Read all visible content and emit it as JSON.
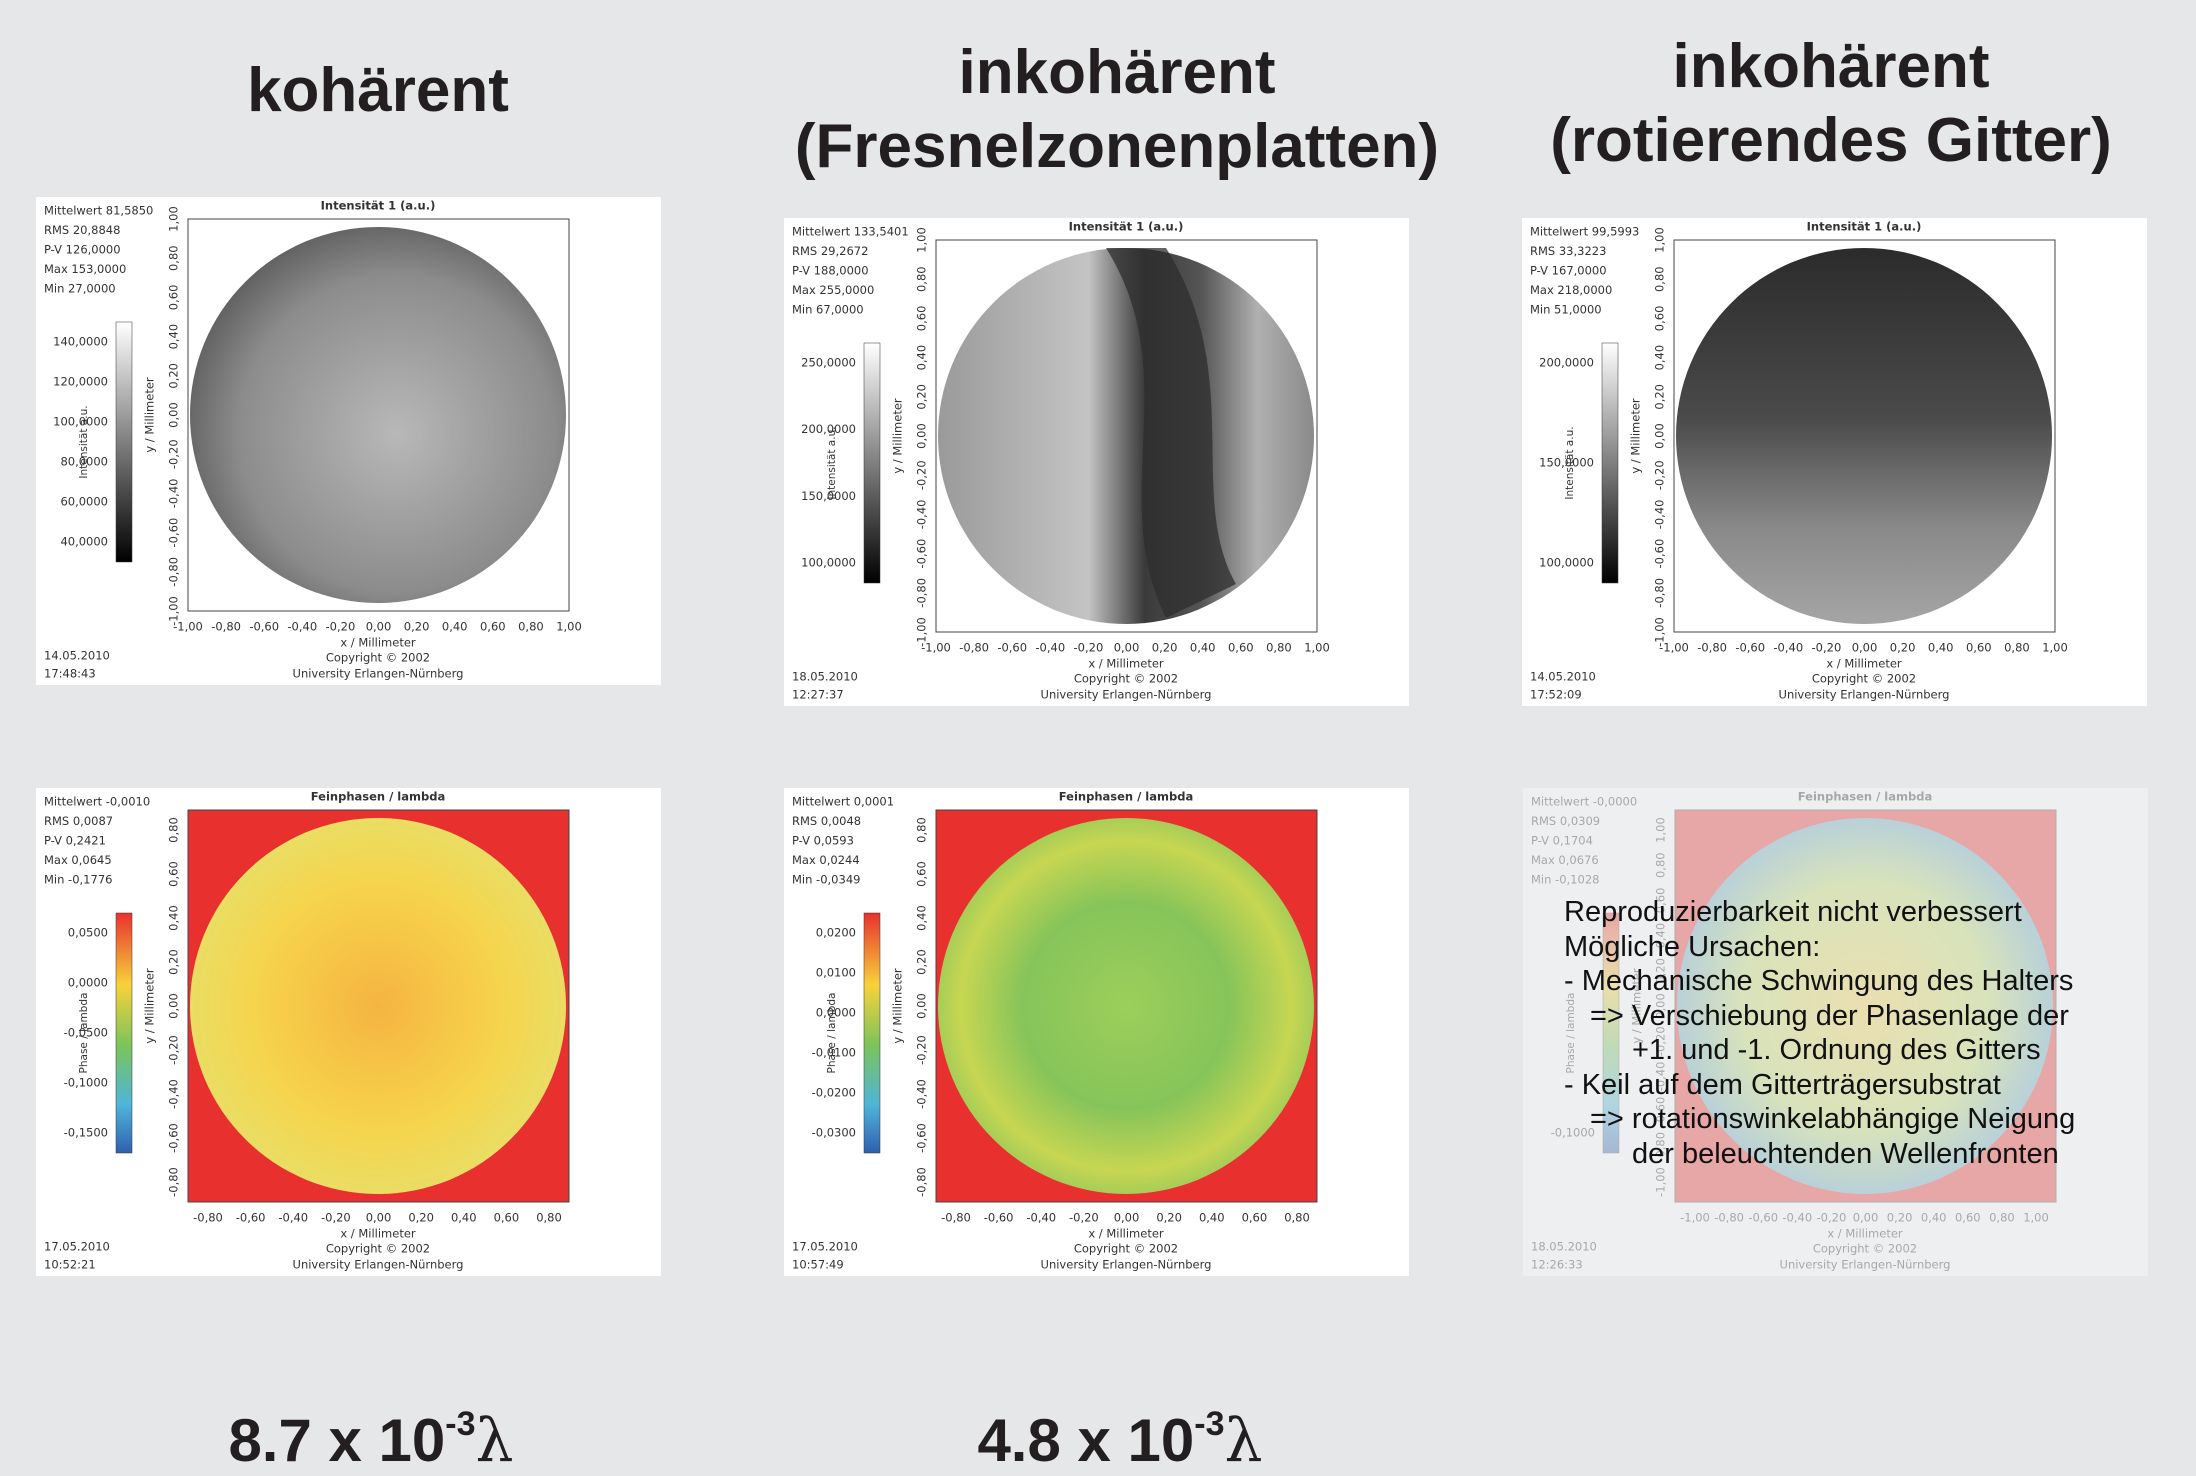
{
  "headings": [
    {
      "lines": [
        "kohärent"
      ]
    },
    {
      "lines": [
        "inkohärent",
        "(Fresnelzonenplatten)"
      ]
    },
    {
      "lines": [
        "inkohärent",
        "(rotierendes Gitter)"
      ]
    }
  ],
  "panels": [
    {
      "title": "Intensität 1 (a.u.)",
      "stats": [
        "Mittelwert 81,5850",
        "RMS 20,8848",
        "P-V 126,0000",
        "Max 153,0000",
        "Min 27,0000"
      ],
      "colorbar_label": "Intensität a.u.",
      "colorbar_ticks": [
        "140,0000",
        "120,0000",
        "100,0000",
        "80,0000",
        "60,0000",
        "40,0000"
      ],
      "y_label": "y / Millimeter",
      "y_ticks": [
        "1,00",
        "0,80",
        "0,60",
        "0,40",
        "0,20",
        "0,00",
        "-0,20",
        "-0,40",
        "-0,60",
        "-0,80",
        "-1,00"
      ],
      "x_label": "x / Millimeter",
      "x_ticks": [
        "-1,00",
        "-0,80",
        "-0,60",
        "-0,40",
        "-0,20",
        "0,00",
        "0,20",
        "0,40",
        "0,60",
        "0,80",
        "1,00"
      ],
      "date": "14.05.2010",
      "time": "17:48:43",
      "copyright": "Copyright © 2002",
      "university": "University Erlangen-Nürnberg"
    },
    {
      "title": "Intensität 1 (a.u.)",
      "stats": [
        "Mittelwert 133,5401",
        "RMS 29,2672",
        "P-V 188,0000",
        "Max 255,0000",
        "Min 67,0000"
      ],
      "colorbar_label": "Intensität a.u.",
      "colorbar_ticks": [
        "250,0000",
        "200,0000",
        "150,0000",
        "100,0000"
      ],
      "y_label": "y / Millimeter",
      "y_ticks": [
        "1,00",
        "0,80",
        "0,60",
        "0,40",
        "0,20",
        "0,00",
        "-0,20",
        "-0,40",
        "-0,60",
        "-0,80",
        "-1,00"
      ],
      "x_label": "x / Millimeter",
      "x_ticks": [
        "-1,00",
        "-0,80",
        "-0,60",
        "-0,40",
        "-0,20",
        "0,00",
        "0,20",
        "0,40",
        "0,60",
        "0,80",
        "1,00"
      ],
      "date": "18.05.2010",
      "time": "12:27:37",
      "copyright": "Copyright © 2002",
      "university": "University Erlangen-Nürnberg"
    },
    {
      "title": "Intensität 1 (a.u.)",
      "stats": [
        "Mittelwert 99,5993",
        "RMS 33,3223",
        "P-V 167,0000",
        "Max 218,0000",
        "Min 51,0000"
      ],
      "colorbar_label": "Intensität a.u.",
      "colorbar_ticks": [
        "200,0000",
        "150,0000",
        "100,0000"
      ],
      "y_label": "y / Millimeter",
      "y_ticks": [
        "1,00",
        "0,80",
        "0,60",
        "0,40",
        "0,20",
        "0,00",
        "-0,20",
        "-0,40",
        "-0,60",
        "-0,80",
        "-1,00"
      ],
      "x_label": "x / Millimeter",
      "x_ticks": [
        "-1,00",
        "-0,80",
        "-0,60",
        "-0,40",
        "-0,20",
        "0,00",
        "0,20",
        "0,40",
        "0,60",
        "0,80",
        "1,00"
      ],
      "date": "14.05.2010",
      "time": "17:52:09",
      "copyright": "Copyright © 2002",
      "university": "University Erlangen-Nürnberg"
    },
    {
      "title": "Feinphasen / lambda",
      "stats": [
        "Mittelwert -0,0010",
        "RMS 0,0087",
        "P-V 0,2421",
        "Max 0,0645",
        "Min -0,1776"
      ],
      "colorbar_label": "Phase / lambda",
      "colorbar_ticks": [
        "0,0500",
        "0,0000",
        "-0,0500",
        "-0,1000",
        "-0,1500"
      ],
      "y_label": "y / Millimeter",
      "y_ticks": [
        "0,80",
        "0,60",
        "0,40",
        "0,20",
        "0,00",
        "-0,20",
        "-0,40",
        "-0,60",
        "-0,80"
      ],
      "x_label": "x / Millimeter",
      "x_ticks": [
        "-0,80",
        "-0,60",
        "-0,40",
        "-0,20",
        "0,00",
        "0,20",
        "0,40",
        "0,60",
        "0,80"
      ],
      "date": "17.05.2010",
      "time": "10:52:21",
      "copyright": "Copyright © 2002",
      "university": "University Erlangen-Nürnberg"
    },
    {
      "title": "Feinphasen / lambda",
      "stats": [
        "Mittelwert 0,0001",
        "RMS 0,0048",
        "P-V 0,0593",
        "Max 0,0244",
        "Min -0,0349"
      ],
      "colorbar_label": "Phase / lambda",
      "colorbar_ticks": [
        "0,0200",
        "0,0100",
        "0,0000",
        "-0,0100",
        "-0,0200",
        "-0,0300"
      ],
      "y_label": "y / Millimeter",
      "y_ticks": [
        "0,80",
        "0,60",
        "0,40",
        "0,20",
        "0,00",
        "-0,20",
        "-0,40",
        "-0,60",
        "-0,80"
      ],
      "x_label": "x / Millimeter",
      "x_ticks": [
        "-0,80",
        "-0,60",
        "-0,40",
        "-0,20",
        "0,00",
        "0,20",
        "0,40",
        "0,60",
        "0,80"
      ],
      "date": "17.05.2010",
      "time": "10:57:49",
      "copyright": "Copyright © 2002",
      "university": "University Erlangen-Nürnberg"
    },
    {
      "title": "Feinphasen / lambda",
      "stats": [
        "Mittelwert -0,0000",
        "RMS 0,0309",
        "P-V 0,1704",
        "Max 0,0676",
        "Min -0,1028"
      ],
      "colorbar_label": "Phase / lambda",
      "colorbar_ticks": [
        "-0,1000"
      ],
      "y_label": "y / Millimeter",
      "y_ticks": [
        "1,00",
        "0,80",
        "0,60",
        "0,40",
        "0,20",
        "0,00",
        "-0,20",
        "-0,40",
        "-0,60",
        "-0,80",
        "-1,00"
      ],
      "x_label": "x / Millimeter",
      "x_ticks": [
        "-1,00",
        "-0,80",
        "-0,60",
        "-0,40",
        "-0,20",
        "0,00",
        "0,20",
        "0,40",
        "0,60",
        "0,80",
        "1,00"
      ],
      "date": "18.05.2010",
      "time": "12:26:33",
      "copyright": "Copyright © 2002",
      "university": "University Erlangen-Nürnberg"
    }
  ],
  "overlay": {
    "lines": [
      "Reproduzierbarkeit nicht verbessert",
      "Mögliche Ursachen:",
      "- Mechanische Schwingung des Halters",
      "=> Verschiebung der Phasenlage der",
      "+1. und -1. Ordnung des Gitters",
      "- Keil auf dem Gitterträgersubstrat",
      "=> rotationswinkelabhängige Neigung",
      "der beleuchtenden Wellenfronten"
    ]
  },
  "results": [
    {
      "value": "8.7 x 10",
      "exponent": "-3",
      "unit": "λ"
    },
    {
      "value": "4.8 x 10",
      "exponent": "-3",
      "unit": "λ"
    }
  ]
}
